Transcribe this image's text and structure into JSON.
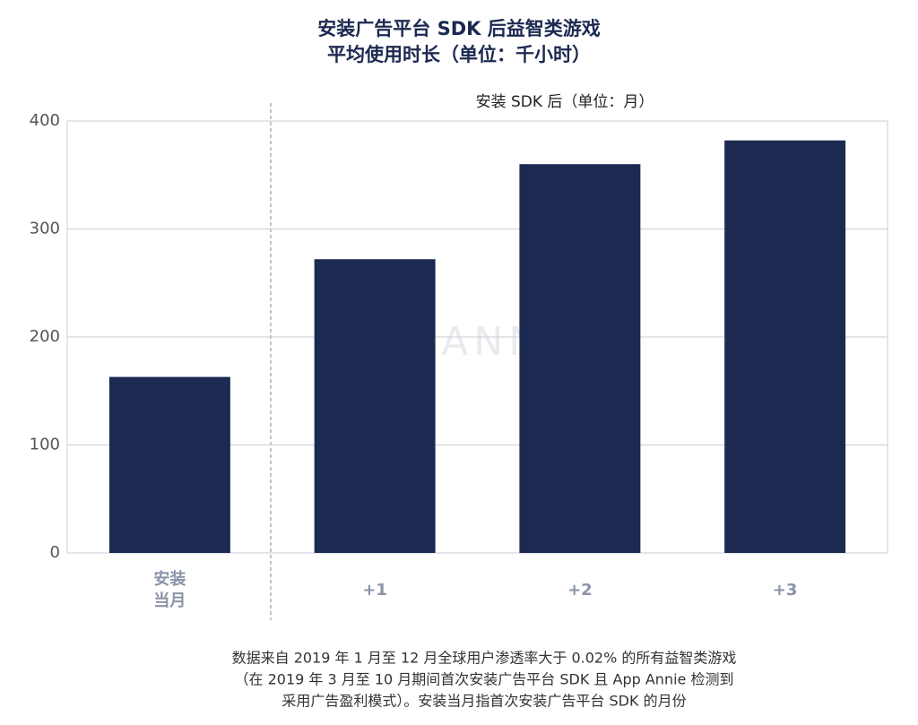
{
  "chart_data": {
    "type": "bar",
    "title": [
      "安装广告平台 SDK 后益智类游戏",
      "平均使用时长（单位：千小时）"
    ],
    "annotation": "安装 SDK 后（单位：月）",
    "watermark": "APP ANNIE",
    "categories": [
      "安装\n当月",
      "+1",
      "+2",
      "+3"
    ],
    "values": [
      163,
      272,
      360,
      382
    ],
    "color": "#1c2951",
    "ylim": [
      0,
      400
    ],
    "yticks": [
      0,
      100,
      200,
      300,
      400
    ],
    "grid": true,
    "footnote": [
      "数据来自 2019 年 1 月至 12 月全球用户渗透率大于 0.02% 的所有益智类游戏",
      "（在 2019 年 3 月至 10 月期间首次安装广告平台 SDK 且 App Annie 检测到",
      "采用广告盈利模式）。安装当月指首次安装广告平台 SDK 的月份"
    ]
  }
}
